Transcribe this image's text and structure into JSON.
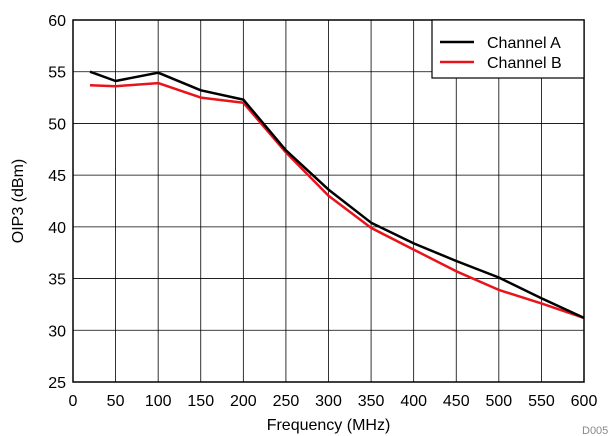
{
  "chart_data": {
    "type": "line",
    "xlabel": "Frequency (MHz)",
    "ylabel": "OIP3 (dBm)",
    "xlim": [
      0,
      600
    ],
    "ylim": [
      25,
      60
    ],
    "xticks": [
      0,
      50,
      100,
      150,
      200,
      250,
      300,
      350,
      400,
      450,
      500,
      550,
      600
    ],
    "yticks": [
      25,
      30,
      35,
      40,
      45,
      50,
      55,
      60
    ],
    "grid": true,
    "legend_position": "top-right",
    "series": [
      {
        "name": "Channel A",
        "color": "#000000",
        "x": [
          20,
          50,
          100,
          150,
          200,
          250,
          300,
          350,
          400,
          450,
          500,
          550,
          600
        ],
        "y": [
          55.0,
          54.1,
          54.9,
          53.2,
          52.3,
          47.4,
          43.6,
          40.4,
          38.4,
          36.7,
          35.1,
          33.1,
          31.2
        ]
      },
      {
        "name": "Channel B",
        "color": "#e8141b",
        "x": [
          20,
          50,
          100,
          150,
          200,
          250,
          300,
          350,
          400,
          450,
          500,
          550,
          600
        ],
        "y": [
          53.7,
          53.6,
          53.9,
          52.5,
          52.0,
          47.2,
          43.0,
          39.9,
          37.8,
          35.7,
          33.9,
          32.6,
          31.2
        ]
      }
    ]
  },
  "footnote": "D005"
}
